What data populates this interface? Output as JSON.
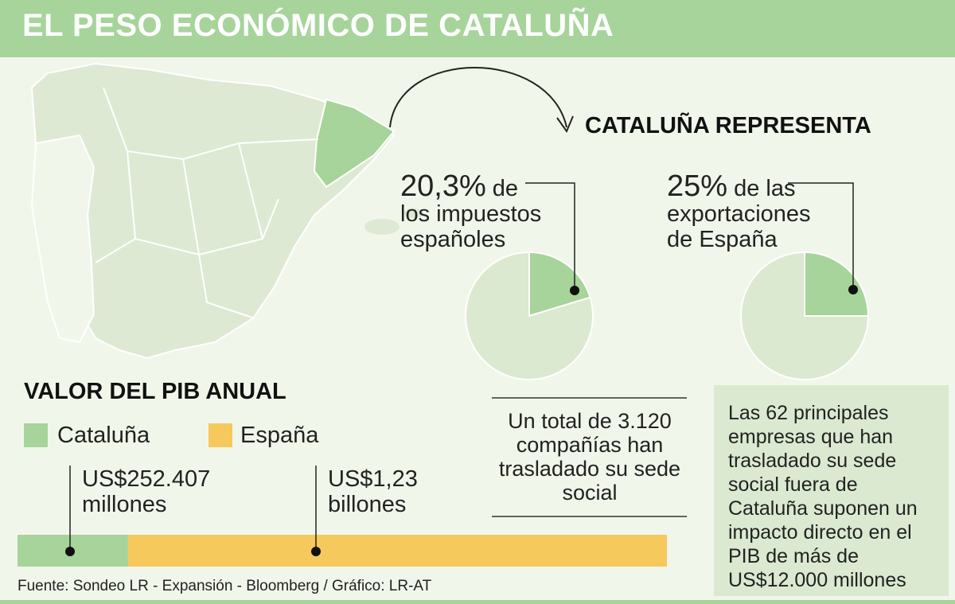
{
  "title": "EL PESO ECONÓMICO DE CATALUÑA",
  "represents_heading": "CATALUÑA REPRESENTA",
  "taxes": {
    "value": "20,3%",
    "line1": " de",
    "line2": "los impuestos",
    "line3": "españoles"
  },
  "exports": {
    "value": "25%",
    "line1": " de las",
    "line2": "exportaciones",
    "line3": "de España"
  },
  "gdp_heading": "VALOR DEL PIB ANUAL",
  "legend": {
    "catalonia": "Cataluña",
    "spain": "España"
  },
  "gdp_catalonia": {
    "line1": "US$252.407",
    "line2": "millones"
  },
  "gdp_spain": {
    "line1": "US$1,23",
    "line2": "billones"
  },
  "companies_note": [
    "Un total de 3.120",
    "compañías han",
    "trasladado su sede",
    "social"
  ],
  "info_box": [
    "Las 62 principales",
    "empresas que han",
    "trasladado su sede",
    "social fuera de",
    "Cataluña suponen un",
    "impacto directo en el",
    "PIB de más de",
    "US$12.000 millones"
  ],
  "source": "Fuente: Sondeo LR - Expansión - Bloomberg / Gráfico: LR-AT",
  "colors": {
    "header": "#a6d49a",
    "catalonia": "#a6d49a",
    "spain": "#f6c95d",
    "pie_rest": "#dbe9d0",
    "map": "#dde9d2",
    "background": "#f1f6ea"
  },
  "chart_data": [
    {
      "type": "pie",
      "slices": [
        {
          "label": "Cataluña",
          "value": 20.3
        },
        {
          "label": "Resto",
          "value": 79.7
        }
      ]
    },
    {
      "type": "pie",
      "slices": [
        {
          "label": "Cataluña",
          "value": 25
        },
        {
          "label": "Resto",
          "value": 75
        }
      ]
    },
    {
      "type": "bar",
      "orientation": "horizontal",
      "stacked": true,
      "series": [
        {
          "name": "Cataluña",
          "values": [
            252.407
          ]
        },
        {
          "name": "España",
          "values": [
            1230
          ]
        }
      ],
      "unit": "US$ miles de millones"
    }
  ]
}
